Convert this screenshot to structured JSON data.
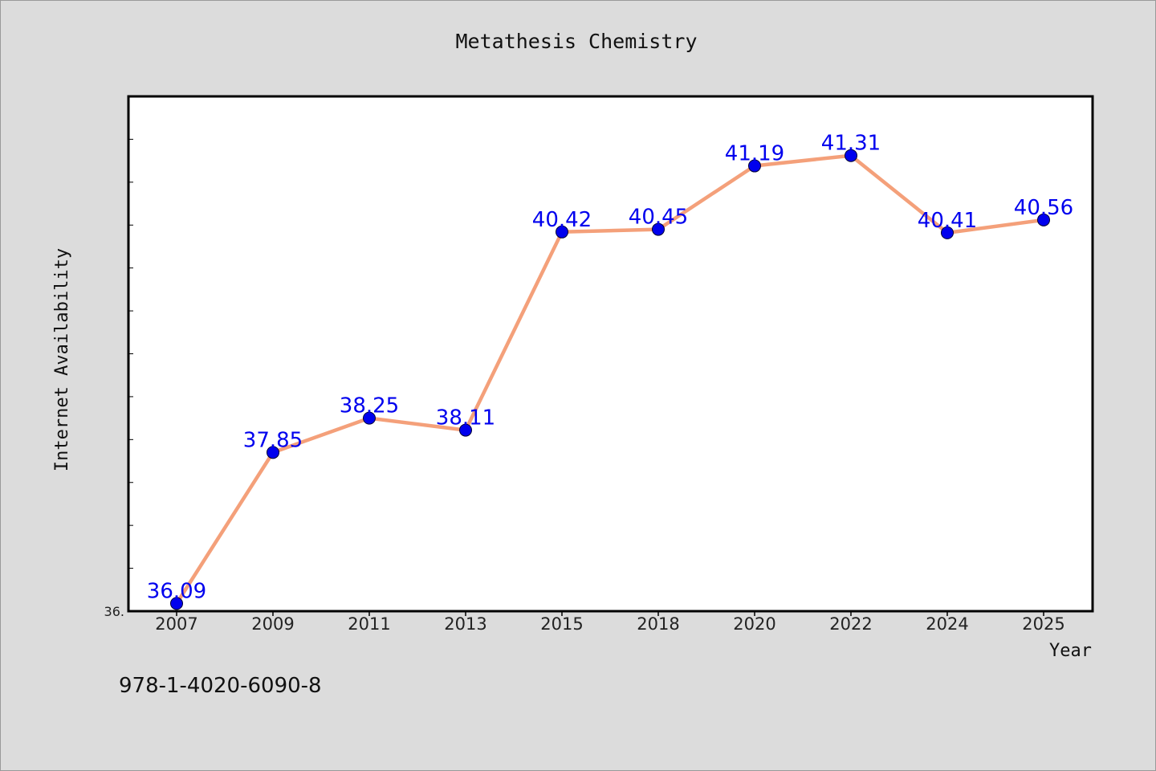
{
  "chart_data": {
    "type": "line",
    "title": "Metathesis Chemistry",
    "xlabel": "Year",
    "ylabel": "Internet Availability",
    "categories": [
      "2007",
      "2009",
      "2011",
      "2013",
      "2015",
      "2018",
      "2020",
      "2022",
      "2024",
      "2025"
    ],
    "series": [
      {
        "values": [
          36.09,
          37.85,
          38.25,
          38.11,
          40.42,
          40.45,
          41.19,
          41.31,
          40.41,
          40.56
        ],
        "labels": [
          "36.09",
          "37.85",
          "38.25",
          "38.11",
          "40.42",
          "40.45",
          "41.19",
          "41.31",
          "40.41",
          "40.56"
        ],
        "line_color": "#f4a07a",
        "marker_color": "#0000ee"
      }
    ],
    "ylim": [
      36.0,
      42.0
    ],
    "ytick_labels": [
      "36."
    ],
    "grid": false,
    "legend": "none"
  },
  "footer_text": "978-1-4020-6090-8",
  "colors": {
    "background": "#dcdcdc",
    "plot_background": "#ffffff",
    "label_color": "#0000ee"
  }
}
